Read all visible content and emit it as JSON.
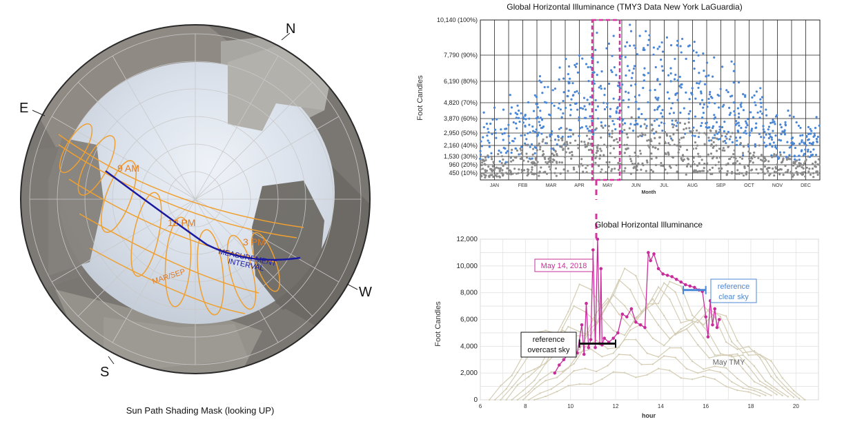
{
  "fisheye": {
    "caption": "Sun Path Shading Mask (looking UP)",
    "compass": {
      "n": "N",
      "e": "E",
      "s": "S",
      "w": "W"
    },
    "hour_labels": [
      "9 AM",
      "12 PM",
      "3 PM"
    ],
    "curve_label_date": "MAR/SEP",
    "measurement_label": [
      "MEASUREMENT",
      "INTERVAL"
    ],
    "colors": {
      "sunpath": "#f0a030",
      "measurement": "#1a1aa0",
      "sky": "#dfe6ef",
      "buildings": "#8a8681"
    }
  },
  "chart_data": [
    {
      "type": "scatter",
      "title": "Global Horizontal Illuminance (TMY3 Data New York LaGuardia)",
      "ylabel": "Foot Candles",
      "xlabel": "Month",
      "categories": [
        "JAN",
        "FEB",
        "MAR",
        "APR",
        "MAY",
        "JUN",
        "JUL",
        "AUG",
        "SEP",
        "OCT",
        "NOV",
        "DEC"
      ],
      "y_ticks": [
        "10,140 (100%)",
        "7,790 (90%)",
        "6,190 (80%)",
        "4,820 (70%)",
        "3,870 (60%)",
        "2,950 (50%)",
        "2,160 (40%)",
        "1,530 (30%)",
        "960 (20%)",
        "450 (10%)"
      ],
      "y_tick_values": [
        10140,
        7790,
        6190,
        4820,
        3870,
        2950,
        2160,
        1530,
        960,
        450
      ],
      "series_colors": [
        "#4a86d6",
        "#8a8a8a"
      ],
      "highlight": {
        "label": "MAY",
        "color": "#d6339e"
      },
      "monthly_max": [
        4600,
        5600,
        7200,
        8800,
        9800,
        10140,
        9900,
        9200,
        7900,
        6300,
        4800,
        4200
      ],
      "grid": true
    },
    {
      "type": "line",
      "title": "Global Horizontal Illuminance",
      "ylabel": "Foot Candles",
      "xlabel": "hour",
      "xlim": [
        6,
        21
      ],
      "ylim": [
        0,
        12000
      ],
      "x_ticks": [
        "6",
        "8",
        "10",
        "12",
        "14",
        "16",
        "18",
        "20"
      ],
      "y_ticks": [
        "0",
        "2,000",
        "4,000",
        "6,000",
        "8,000",
        "10,000",
        "12,000"
      ],
      "grid": true,
      "annotations": {
        "date_label": "May 14, 2018",
        "overcast": [
          "reference",
          "overcast sky"
        ],
        "clear": [
          "reference",
          "clear sky"
        ],
        "tmy": "May TMY"
      },
      "overcast_interval": {
        "x": [
          10.4,
          12.0
        ],
        "y": 4200
      },
      "clear_interval": {
        "x": [
          15.0,
          16.0
        ],
        "y": 8200
      },
      "series": [
        {
          "name": "May 14, 2018",
          "color": "#c72c9a",
          "x": [
            9.3,
            9.5,
            9.7,
            9.9,
            10.1,
            10.3,
            10.5,
            10.6,
            10.7,
            10.8,
            10.9,
            11.0,
            11.1,
            11.2,
            11.3,
            11.35,
            11.4,
            11.5,
            11.7,
            11.9,
            12.1,
            12.3,
            12.5,
            12.7,
            12.9,
            13.1,
            13.3,
            13.45,
            13.55,
            13.7,
            13.9,
            14.1,
            14.3,
            14.5,
            14.7,
            14.9,
            15.1,
            15.3,
            15.5,
            15.7,
            15.85,
            16.0,
            16.1,
            16.2,
            16.3,
            16.4,
            16.5,
            16.6
          ],
          "y": [
            2000,
            2600,
            3000,
            3400,
            3800,
            3500,
            5600,
            3400,
            7200,
            3900,
            4500,
            11200,
            3900,
            12000,
            4200,
            9800,
            4100,
            4600,
            4300,
            4600,
            5000,
            6400,
            6200,
            6800,
            5800,
            5600,
            5400,
            11000,
            10400,
            10900,
            9800,
            9400,
            9300,
            9200,
            9000,
            8800,
            8600,
            8500,
            8400,
            8200,
            8100,
            6200,
            4700,
            7400,
            5600,
            6800,
            5400,
            6000
          ]
        },
        {
          "name": "May TMY",
          "color": "#d4cdb4",
          "peaks": [
            10000,
            9200,
            8500,
            7800,
            6900,
            5800,
            4700,
            3600,
            2400
          ]
        }
      ]
    }
  ]
}
